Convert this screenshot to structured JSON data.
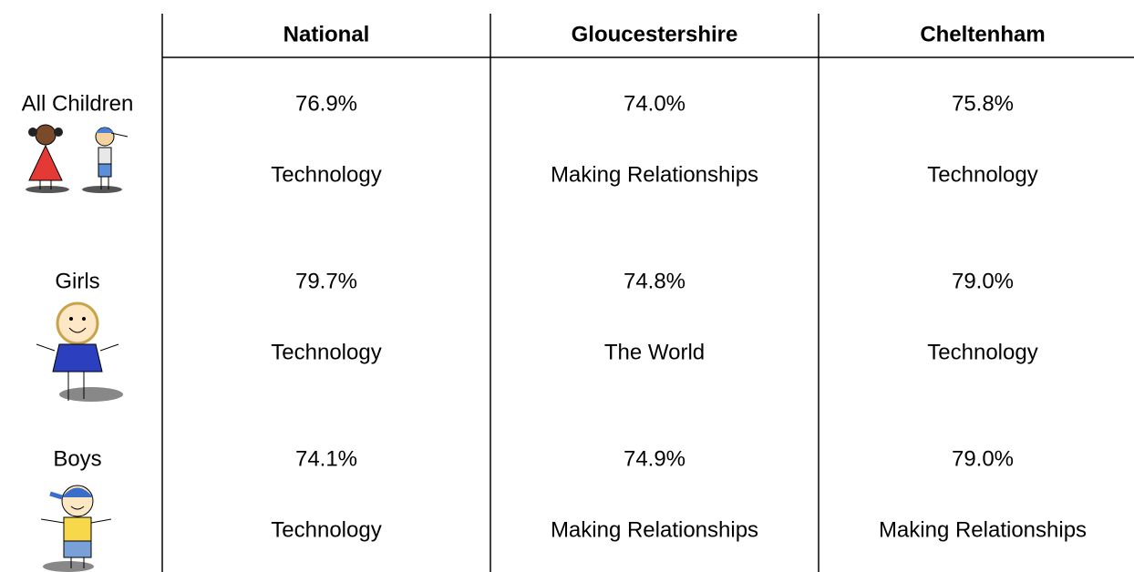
{
  "table": {
    "columns": [
      "National",
      "Gloucestershire",
      "Cheltenham"
    ],
    "rows": [
      {
        "label": "All Children",
        "values": [
          "76.9%",
          "74.0%",
          "75.8%"
        ],
        "subjects": [
          "Technology",
          "Making Relationships",
          "Technology"
        ]
      },
      {
        "label": "Girls",
        "values": [
          "79.7%",
          "74.8%",
          "79.0%"
        ],
        "subjects": [
          "Technology",
          "The World",
          "Technology"
        ]
      },
      {
        "label": "Boys",
        "values": [
          "74.1%",
          "74.9%",
          "79.0%"
        ],
        "subjects": [
          "Technology",
          "Making Relationships",
          "Making Relationships"
        ]
      }
    ]
  }
}
